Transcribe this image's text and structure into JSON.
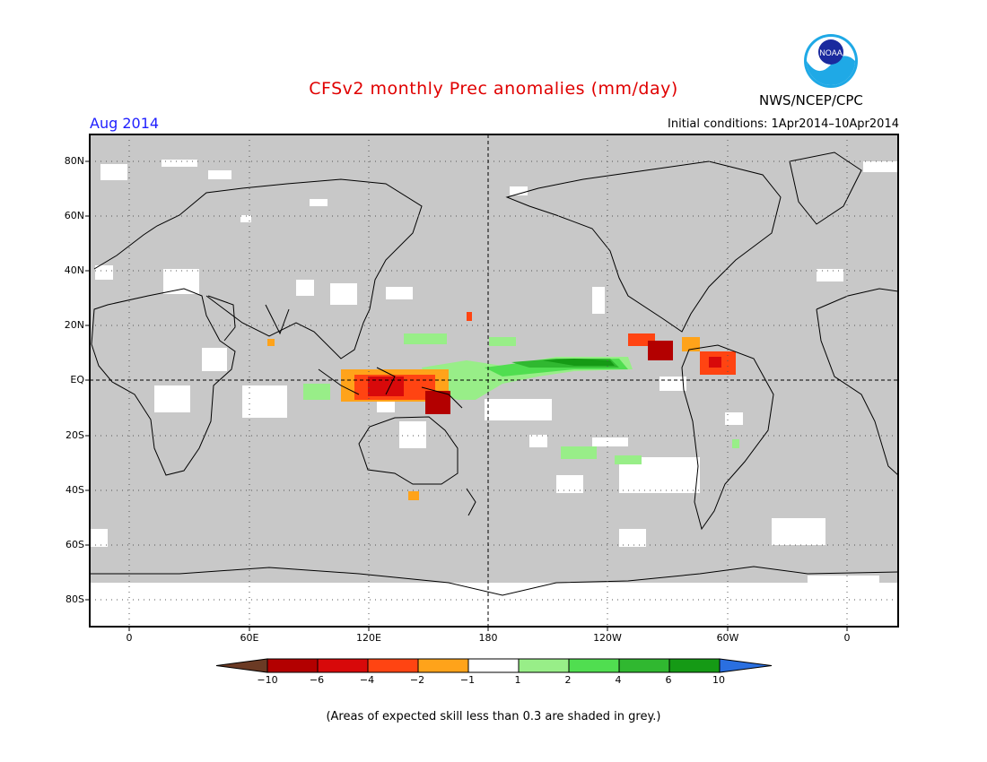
{
  "title": "CFSv2 monthly Prec anomalies (mm/day)",
  "month": "Aug 2014",
  "organization": "NWS/NCEP/CPC",
  "logo_text": "NOAA",
  "initial_conditions": "Initial conditions: 1Apr2014–10Apr2014",
  "footer": "(Areas of expected skill less than 0.3 are shaded in grey.)",
  "lon_labels": [
    "0",
    "60E",
    "120E",
    "180",
    "120W",
    "60W",
    "0"
  ],
  "lat_labels": [
    "80N",
    "60N",
    "40N",
    "20N",
    "EQ",
    "20S",
    "40S",
    "60S",
    "80S"
  ],
  "colorbar": {
    "labels": [
      "−10",
      "−6",
      "−4",
      "−2",
      "−1",
      "1",
      "2",
      "4",
      "6",
      "10"
    ],
    "colors": [
      "#6b3a24",
      "#b30000",
      "#d8090a",
      "#ff4412",
      "#ffa31a",
      "#ffffff",
      "#98ee88",
      "#50de50",
      "#30b830",
      "#159a15",
      "#2a6fe0"
    ]
  },
  "map_colors": {
    "grey_skill_mask": "#c8c8c8",
    "ocean_land_background": "#ffffff",
    "coastline": "#000000"
  }
}
